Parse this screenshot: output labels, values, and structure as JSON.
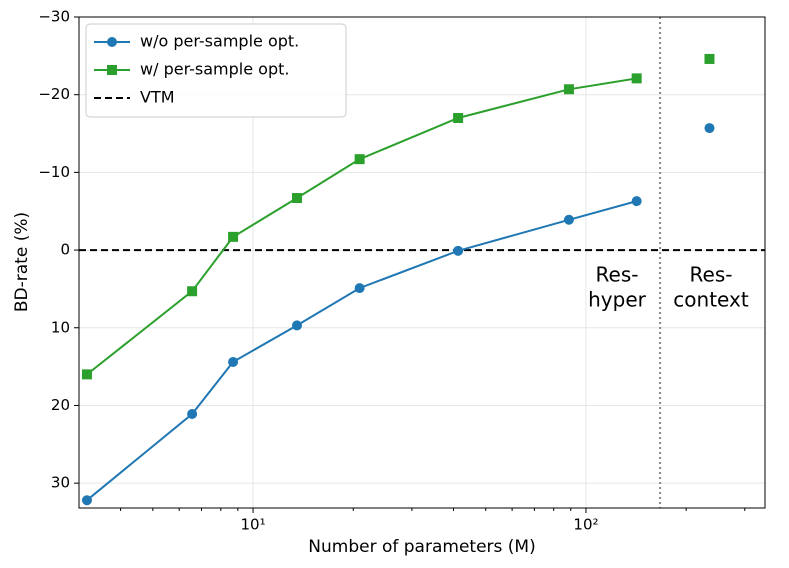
{
  "chart_data": {
    "type": "line",
    "x_label": "Number of parameters (M)",
    "y_label": "BD-rate (%)",
    "x": [
      3.17,
      6.56,
      8.71,
      13.55,
      20.9,
      41.3,
      88.9,
      142,
      null,
      235
    ],
    "series": [
      {
        "name": "w/o per-sample opt.",
        "color": "#1f77b4",
        "marker": "circle",
        "values": [
          32.2,
          21.1,
          14.4,
          9.7,
          4.9,
          0.1,
          -3.9,
          -6.3,
          null,
          -15.7
        ]
      },
      {
        "name": "w/ per-sample opt.",
        "color": "#2ca02c",
        "marker": "square",
        "values": [
          16.0,
          5.3,
          -1.7,
          -6.7,
          -11.7,
          -17.0,
          -20.7,
          -22.1,
          null,
          -24.6
        ]
      }
    ],
    "reference_line": {
      "name": "VTM",
      "value": 0,
      "color": "#000000"
    },
    "divider_x": 167,
    "annotations": [
      [
        "Res-",
        "hyper"
      ],
      [
        "Res-",
        "context"
      ]
    ],
    "xlog": true,
    "xlim": [
      3.0,
      345
    ],
    "xticks": [
      {
        "value": 10,
        "label": "10¹"
      },
      {
        "value": 100,
        "label": "10²"
      }
    ],
    "xminor_ticks": [
      4,
      5,
      6,
      7,
      8,
      9,
      20,
      30,
      40,
      50,
      60,
      70,
      80,
      90,
      200,
      300
    ],
    "ylim": [
      -30,
      33.2
    ],
    "invert_y": true,
    "yticks": [
      {
        "value": -30,
        "label": "−30"
      },
      {
        "value": -20,
        "label": "−20"
      },
      {
        "value": -10,
        "label": "−10"
      },
      0,
      10,
      20,
      30
    ],
    "grid": true,
    "legend": "upper left"
  }
}
